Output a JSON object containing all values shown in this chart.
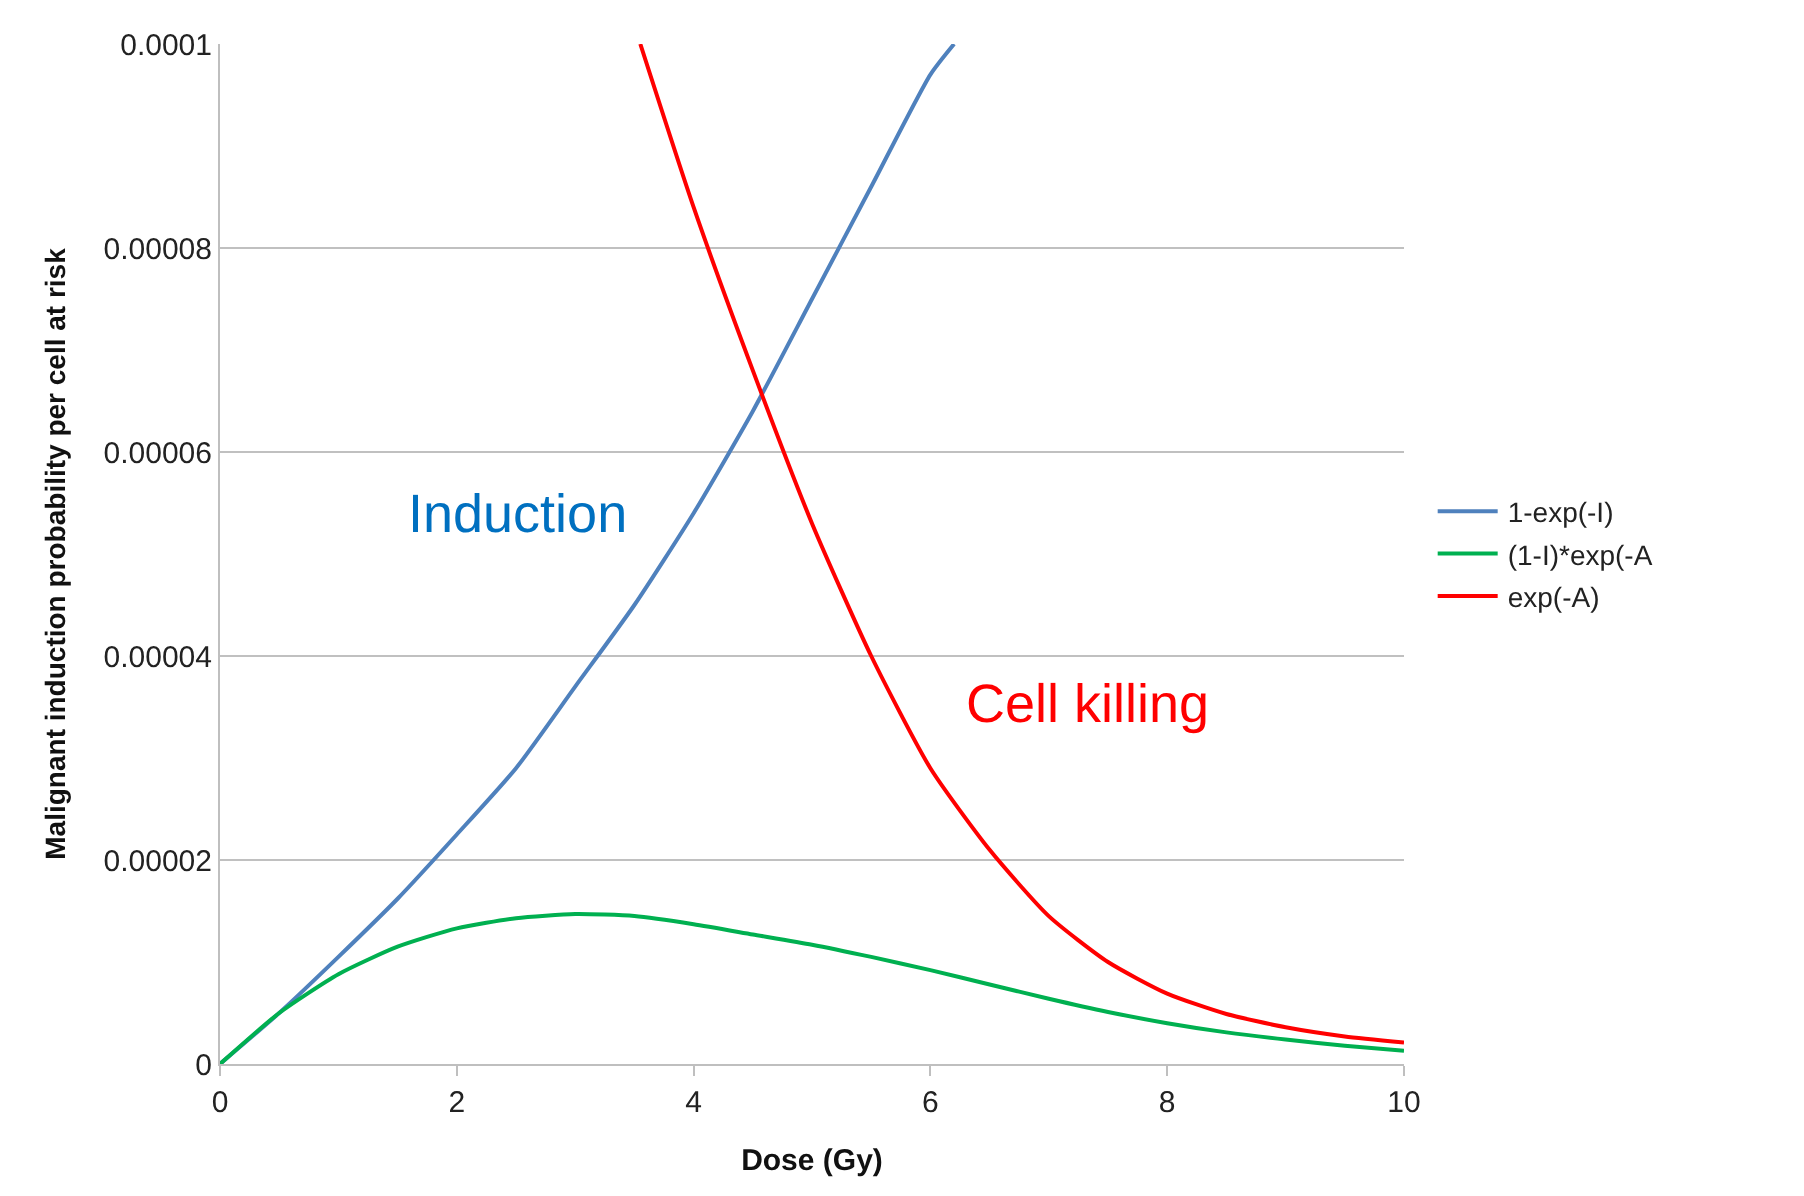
{
  "chart_data": {
    "type": "line",
    "xlabel": "Dose (Gy)",
    "ylabel": "Malignant induction probability per cell at risk",
    "xlim": [
      0,
      10
    ],
    "xticks": [
      0,
      2,
      4,
      6,
      8,
      10
    ],
    "ylim": [
      0,
      0.0001
    ],
    "yticks": [
      0,
      {
        "value": 2e-05,
        "label": "0.00002"
      },
      {
        "value": 4e-05,
        "label": "0.00004"
      },
      {
        "value": 6e-05,
        "label": "0.00006"
      },
      {
        "value": 8e-05,
        "label": "0.00008"
      },
      {
        "value": 0.0001,
        "label": "0.0001"
      }
    ],
    "grid": "y",
    "legend": "right",
    "marker": "none",
    "line_style": "solid",
    "series": [
      {
        "name": "1-exp(-I)",
        "color": "#4f81bd",
        "x": [
          0,
          0.5,
          1,
          1.5,
          2,
          2.5,
          3,
          3.5,
          4,
          4.5,
          5,
          5.5,
          6,
          6.2
        ],
        "values": [
          0,
          5e-06,
          1.05e-05,
          1.62e-05,
          2.25e-05,
          2.9e-05,
          3.7e-05,
          4.5e-05,
          5.4e-05,
          6.4e-05,
          7.5e-05,
          8.6e-05,
          9.7e-05,
          0.0001
        ]
      },
      {
        "name": "(1-I)*exp(-A",
        "color": "#00b050",
        "x": [
          0,
          0.5,
          1,
          1.5,
          2,
          2.5,
          3,
          3.5,
          4,
          4.5,
          5,
          5.5,
          6,
          6.5,
          7,
          7.5,
          8,
          8.5,
          9,
          9.5,
          10
        ],
        "values": [
          0,
          5e-06,
          8.8e-06,
          1.15e-05,
          1.33e-05,
          1.43e-05,
          1.47e-05,
          1.45e-05,
          1.37e-05,
          1.27e-05,
          1.17e-05,
          1.05e-05,
          9.2e-06,
          7.8e-06,
          6.4e-06,
          5.1e-06,
          4e-06,
          3.1e-06,
          2.4e-06,
          1.8e-06,
          1.3e-06
        ]
      },
      {
        "name": "exp(-A)",
        "color": "#ff0000",
        "x": [
          3.55,
          4,
          4.5,
          5,
          5.5,
          6,
          6.5,
          7,
          7.5,
          8,
          8.5,
          9,
          9.5,
          10
        ],
        "values": [
          0.0001,
          8.4e-05,
          6.8e-05,
          5.3e-05,
          4e-05,
          2.9e-05,
          2.1e-05,
          1.45e-05,
          1e-05,
          6.9e-06,
          4.9e-06,
          3.6e-06,
          2.7e-06,
          2.1e-06
        ]
      }
    ],
    "annotations": [
      "Induction",
      "Cell killing"
    ]
  }
}
